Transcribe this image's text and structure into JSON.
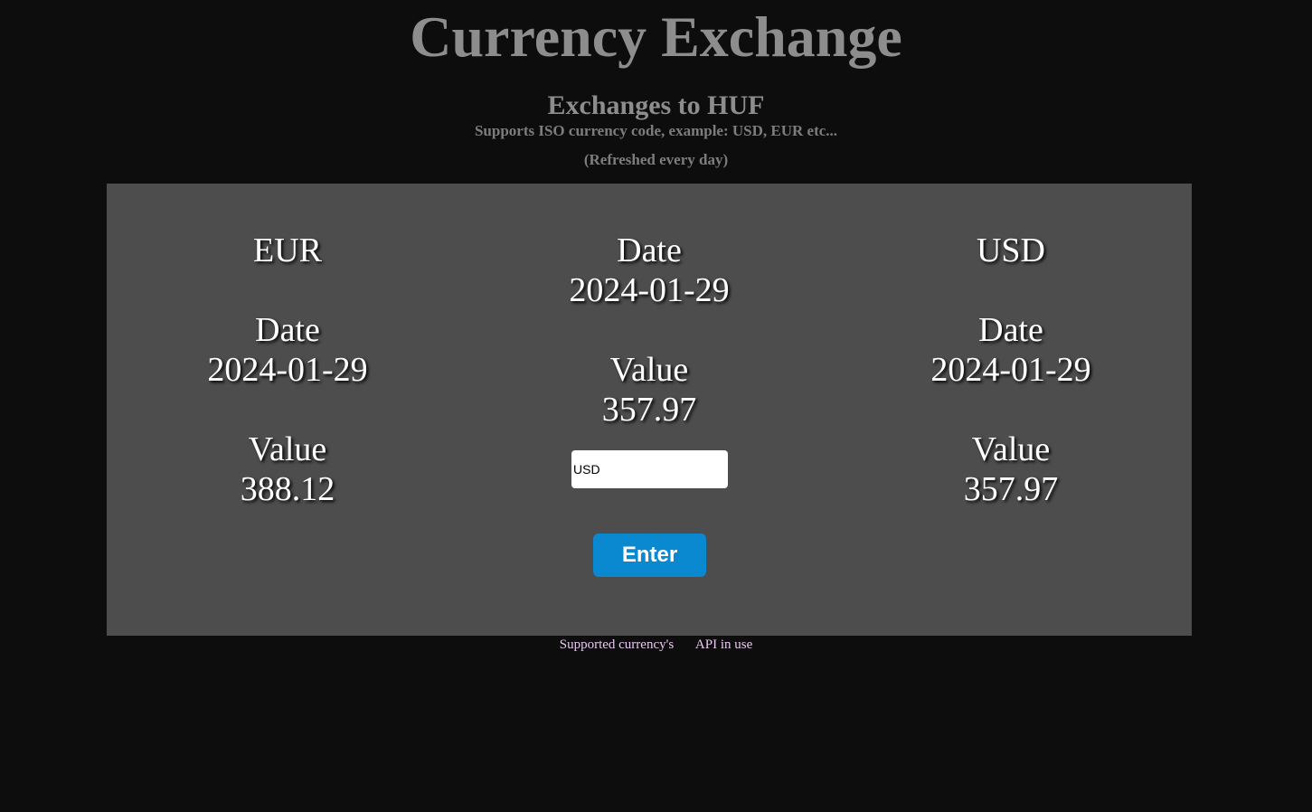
{
  "header": {
    "title": "Currency Exchange",
    "subtitle": "Exchanges to HUF",
    "support_text": "Supports ISO currency code, example: USD, EUR etc...",
    "refresh_text": "(Refreshed every day)"
  },
  "left_card": {
    "currency": "EUR",
    "date_label": "Date",
    "date": "2024-01-29",
    "value_label": "Value",
    "value": "388.12"
  },
  "middle_card": {
    "date_label": "Date",
    "date": "2024-01-29",
    "value_label": "Value",
    "value": "357.97",
    "input_value": "USD",
    "enter_label": "Enter"
  },
  "right_card": {
    "currency": "USD",
    "date_label": "Date",
    "date": "2024-01-29",
    "value_label": "Value",
    "value": "357.97"
  },
  "footer": {
    "supported_link": "Supported currency's",
    "api_link": "API in use"
  },
  "colors": {
    "background": "#0d0d0d",
    "panel": "#4d4d4d",
    "button": "#0a88d0",
    "link": "#e8c9f0"
  }
}
